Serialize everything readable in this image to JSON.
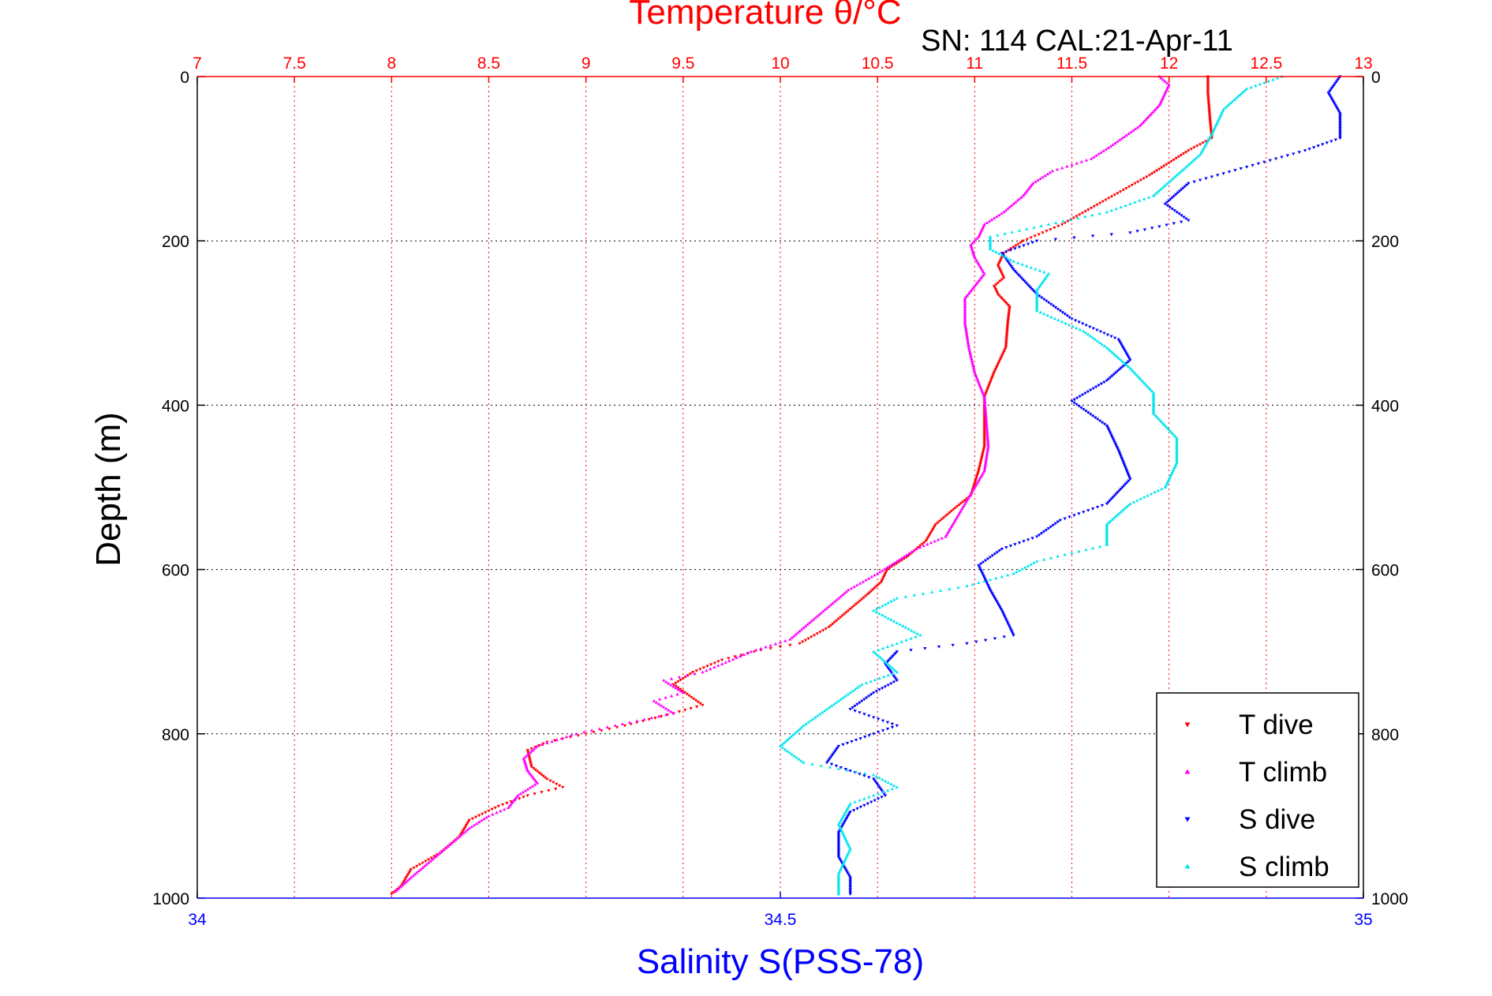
{
  "chart_data": {
    "type": "scatter",
    "title": "Temperature θ/°C",
    "subtitle": "SN: 114  CAL:21-Apr-11",
    "ylabel": "Depth (m)",
    "xlabel_bottom": "Salinity S(PSS-78)",
    "top_axis": {
      "label": "Temperature θ/°C",
      "range": [
        7,
        13
      ],
      "ticks": [
        "7",
        "7.5",
        "8",
        "8.5",
        "9",
        "9.5",
        "10",
        "10.5",
        "11",
        "11.5",
        "12",
        "12.5",
        "13"
      ],
      "color": "#ff0000"
    },
    "bottom_axis": {
      "label": "Salinity S(PSS-78)",
      "range": [
        34,
        35
      ],
      "ticks": [
        "34",
        "34.5",
        "35"
      ],
      "color": "#0000ff"
    },
    "y_axis": {
      "range": [
        0,
        1000
      ],
      "reversed": true,
      "ticks": [
        "0",
        "200",
        "400",
        "600",
        "800",
        "1000"
      ]
    },
    "grid": true,
    "legend_position": "bottom-right",
    "series": [
      {
        "name": "T dive",
        "axis": "temperature",
        "marker": "triangle-down",
        "color": "#ff0000",
        "points": [
          [
            12.2,
            0
          ],
          [
            12.2,
            20
          ],
          [
            12.21,
            50
          ],
          [
            12.22,
            75
          ],
          [
            12.1,
            90
          ],
          [
            12.0,
            105
          ],
          [
            11.9,
            120
          ],
          [
            11.75,
            140
          ],
          [
            11.6,
            160
          ],
          [
            11.45,
            180
          ],
          [
            11.35,
            190
          ],
          [
            11.25,
            200
          ],
          [
            11.15,
            215
          ],
          [
            11.12,
            230
          ],
          [
            11.15,
            245
          ],
          [
            11.1,
            255
          ],
          [
            11.12,
            265
          ],
          [
            11.18,
            280
          ],
          [
            11.17,
            300
          ],
          [
            11.16,
            330
          ],
          [
            11.1,
            360
          ],
          [
            11.05,
            390
          ],
          [
            11.05,
            420
          ],
          [
            11.05,
            450
          ],
          [
            11.02,
            480
          ],
          [
            10.98,
            510
          ],
          [
            10.9,
            525
          ],
          [
            10.8,
            545
          ],
          [
            10.75,
            565
          ],
          [
            10.65,
            585
          ],
          [
            10.55,
            600
          ],
          [
            10.52,
            615
          ],
          [
            10.45,
            630
          ],
          [
            10.35,
            650
          ],
          [
            10.25,
            670
          ],
          [
            10.1,
            690
          ],
          [
            9.9,
            698
          ],
          [
            9.7,
            710
          ],
          [
            9.55,
            725
          ],
          [
            9.45,
            740
          ],
          [
            9.6,
            765
          ],
          [
            9.45,
            775
          ],
          [
            9.2,
            790
          ],
          [
            9.0,
            800
          ],
          [
            8.8,
            810
          ],
          [
            8.7,
            820
          ],
          [
            8.72,
            840
          ],
          [
            8.8,
            855
          ],
          [
            8.88,
            865
          ],
          [
            8.7,
            875
          ],
          [
            8.55,
            888
          ],
          [
            8.4,
            905
          ],
          [
            8.35,
            925
          ],
          [
            8.25,
            945
          ],
          [
            8.1,
            965
          ],
          [
            8.05,
            985
          ],
          [
            8.0,
            995
          ]
        ]
      },
      {
        "name": "T climb",
        "axis": "temperature",
        "marker": "triangle-up",
        "color": "#ff00ff",
        "points": [
          [
            11.95,
            0
          ],
          [
            12.0,
            10
          ],
          [
            11.95,
            35
          ],
          [
            11.85,
            60
          ],
          [
            11.7,
            85
          ],
          [
            11.6,
            100
          ],
          [
            11.4,
            115
          ],
          [
            11.3,
            130
          ],
          [
            11.25,
            145
          ],
          [
            11.15,
            165
          ],
          [
            11.05,
            180
          ],
          [
            11.02,
            195
          ],
          [
            10.98,
            205
          ],
          [
            11.0,
            220
          ],
          [
            11.05,
            240
          ],
          [
            11.0,
            255
          ],
          [
            10.95,
            270
          ],
          [
            10.95,
            300
          ],
          [
            10.97,
            330
          ],
          [
            11.0,
            360
          ],
          [
            11.05,
            390
          ],
          [
            11.06,
            420
          ],
          [
            11.07,
            450
          ],
          [
            11.05,
            480
          ],
          [
            11.0,
            500
          ],
          [
            10.95,
            520
          ],
          [
            10.9,
            540
          ],
          [
            10.85,
            560
          ],
          [
            10.7,
            575
          ],
          [
            10.6,
            590
          ],
          [
            10.5,
            605
          ],
          [
            10.35,
            625
          ],
          [
            10.25,
            645
          ],
          [
            10.15,
            665
          ],
          [
            10.05,
            685
          ],
          [
            9.85,
            700
          ],
          [
            9.7,
            715
          ],
          [
            9.6,
            725
          ],
          [
            9.4,
            735
          ],
          [
            9.5,
            750
          ],
          [
            9.35,
            760
          ],
          [
            9.45,
            775
          ],
          [
            9.15,
            790
          ],
          [
            8.95,
            800
          ],
          [
            8.75,
            815
          ],
          [
            8.68,
            830
          ],
          [
            8.7,
            845
          ],
          [
            8.75,
            860
          ],
          [
            8.65,
            875
          ],
          [
            8.6,
            890
          ],
          [
            8.5,
            900
          ],
          [
            8.4,
            915
          ],
          [
            8.3,
            935
          ],
          [
            8.2,
            955
          ],
          [
            8.1,
            975
          ],
          [
            8.02,
            992
          ]
        ]
      },
      {
        "name": "S dive",
        "axis": "salinity",
        "marker": "triangle-down",
        "color": "#0000ff",
        "points": [
          [
            34.98,
            0
          ],
          [
            34.97,
            20
          ],
          [
            34.98,
            45
          ],
          [
            34.98,
            75
          ],
          [
            34.95,
            90
          ],
          [
            34.9,
            110
          ],
          [
            34.85,
            130
          ],
          [
            34.83,
            155
          ],
          [
            34.85,
            175
          ],
          [
            34.8,
            190
          ],
          [
            34.72,
            200
          ],
          [
            34.69,
            215
          ],
          [
            34.7,
            235
          ],
          [
            34.72,
            265
          ],
          [
            34.75,
            295
          ],
          [
            34.79,
            320
          ],
          [
            34.8,
            345
          ],
          [
            34.78,
            370
          ],
          [
            34.75,
            395
          ],
          [
            34.78,
            425
          ],
          [
            34.79,
            455
          ],
          [
            34.8,
            490
          ],
          [
            34.78,
            520
          ],
          [
            34.74,
            540
          ],
          [
            34.72,
            560
          ],
          [
            34.69,
            575
          ],
          [
            34.67,
            595
          ],
          [
            34.68,
            625
          ],
          [
            34.69,
            650
          ],
          [
            34.7,
            680
          ],
          [
            34.66,
            690
          ],
          [
            34.6,
            700
          ],
          [
            34.59,
            715
          ],
          [
            34.6,
            735
          ],
          [
            34.58,
            750
          ],
          [
            34.56,
            770
          ],
          [
            34.6,
            790
          ],
          [
            34.58,
            800
          ],
          [
            34.55,
            815
          ],
          [
            34.54,
            835
          ],
          [
            34.58,
            855
          ],
          [
            34.59,
            875
          ],
          [
            34.56,
            895
          ],
          [
            34.55,
            920
          ],
          [
            34.55,
            950
          ],
          [
            34.56,
            975
          ],
          [
            34.56,
            995
          ]
        ]
      },
      {
        "name": "S climb",
        "axis": "salinity",
        "marker": "triangle-up",
        "color": "#00e5ee",
        "points": [
          [
            34.93,
            0
          ],
          [
            34.9,
            15
          ],
          [
            34.88,
            40
          ],
          [
            34.87,
            70
          ],
          [
            34.86,
            95
          ],
          [
            34.84,
            120
          ],
          [
            34.82,
            145
          ],
          [
            34.78,
            165
          ],
          [
            34.73,
            180
          ],
          [
            34.68,
            195
          ],
          [
            34.68,
            210
          ],
          [
            34.7,
            225
          ],
          [
            34.73,
            240
          ],
          [
            34.72,
            260
          ],
          [
            34.72,
            285
          ],
          [
            34.76,
            310
          ],
          [
            34.78,
            330
          ],
          [
            34.8,
            355
          ],
          [
            34.82,
            385
          ],
          [
            34.82,
            410
          ],
          [
            34.84,
            440
          ],
          [
            34.84,
            470
          ],
          [
            34.83,
            500
          ],
          [
            34.8,
            520
          ],
          [
            34.78,
            545
          ],
          [
            34.78,
            570
          ],
          [
            34.72,
            590
          ],
          [
            34.7,
            605
          ],
          [
            34.66,
            620
          ],
          [
            34.6,
            635
          ],
          [
            34.58,
            650
          ],
          [
            34.6,
            665
          ],
          [
            34.62,
            680
          ],
          [
            34.58,
            700
          ],
          [
            34.6,
            725
          ],
          [
            34.57,
            740
          ],
          [
            34.55,
            760
          ],
          [
            34.52,
            790
          ],
          [
            34.5,
            815
          ],
          [
            34.52,
            835
          ],
          [
            34.58,
            850
          ],
          [
            34.6,
            865
          ],
          [
            34.56,
            885
          ],
          [
            34.55,
            910
          ],
          [
            34.56,
            940
          ],
          [
            34.55,
            970
          ],
          [
            34.55,
            995
          ]
        ]
      }
    ]
  }
}
